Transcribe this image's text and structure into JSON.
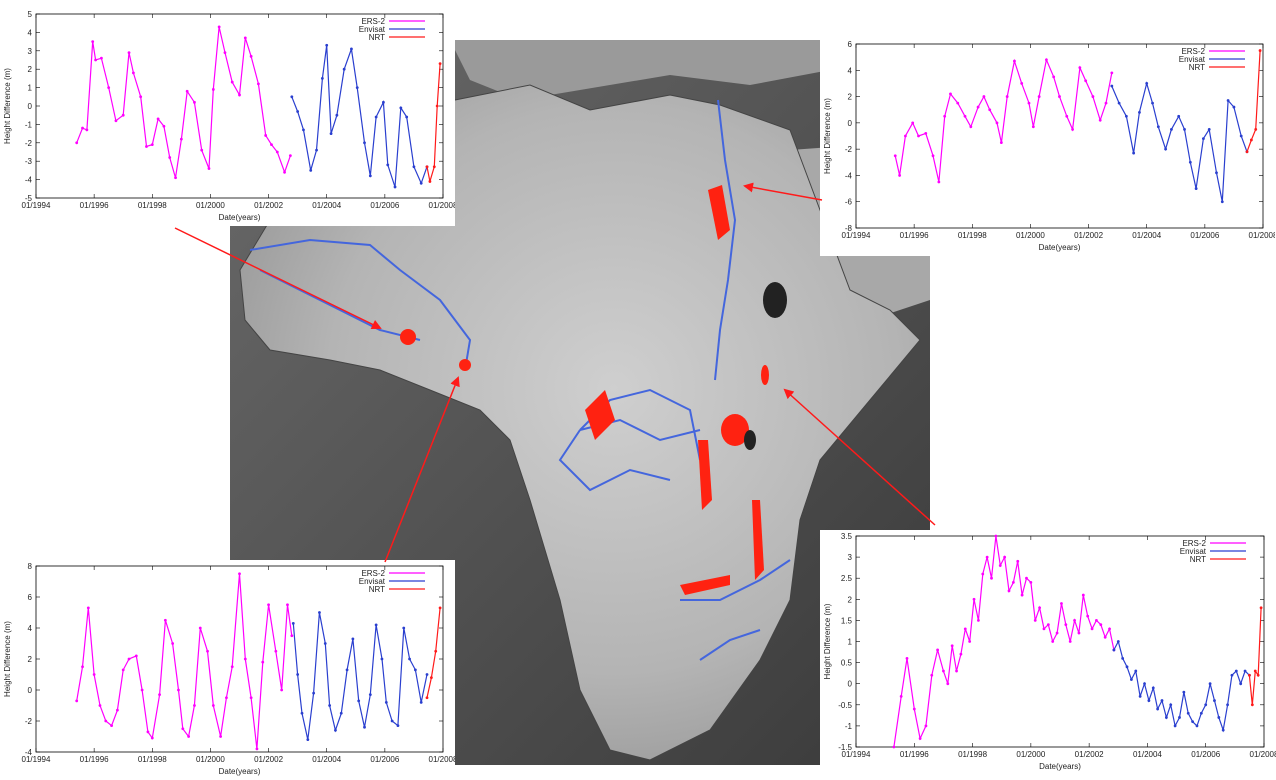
{
  "colors": {
    "ers2": "#ff00ff",
    "envisat": "#2a3fcf",
    "nrt": "#ff1a1a",
    "arrow": "#ff1a1a",
    "river": "#4466dd",
    "lake": "#ff2211"
  },
  "chart_data": [
    {
      "type": "line",
      "xlabel": "Date(years)",
      "ylabel": "Height Difference (m)",
      "xticks": [
        "01/1994",
        "01/1996",
        "01/1998",
        "01/2000",
        "01/2002",
        "01/2004",
        "01/2006",
        "01/2008"
      ],
      "xlim": [
        1994,
        2008
      ],
      "ylim": [
        -5,
        5
      ],
      "yticks": [
        "-5",
        "-4",
        "-3",
        "-2",
        "-1",
        "0",
        "1",
        "2",
        "3",
        "4",
        "5"
      ],
      "legend": [
        "ERS-2",
        "Envisat",
        "NRT"
      ],
      "series": [
        {
          "name": "ERS-2",
          "x": [
            1995.4,
            1995.6,
            1995.75,
            1995.95,
            1996.05,
            1996.25,
            1996.5,
            1996.75,
            1997.0,
            1997.2,
            1997.35,
            1997.6,
            1997.8,
            1998.0,
            1998.2,
            1998.4,
            1998.6,
            1998.8,
            1999.0,
            1999.2,
            1999.45,
            1999.7,
            1999.95,
            2000.1,
            2000.3,
            2000.5,
            2000.75,
            2001.0,
            2001.2,
            2001.4,
            2001.65,
            2001.9,
            2002.1,
            2002.3,
            2002.55,
            2002.75
          ],
          "y": [
            -2,
            -1.2,
            -1.3,
            3.5,
            2.5,
            2.6,
            1,
            -0.8,
            -0.5,
            2.9,
            1.8,
            0.5,
            -2.2,
            -2.1,
            -0.7,
            -1.1,
            -2.8,
            -3.9,
            -1.8,
            0.8,
            0.2,
            -2.4,
            -3.4,
            0.9,
            4.3,
            2.9,
            1.3,
            0.6,
            3.7,
            2.7,
            1.2,
            -1.6,
            -2.1,
            -2.5,
            -3.6,
            -2.7
          ]
        },
        {
          "name": "Envisat",
          "x": [
            2002.8,
            2003.0,
            2003.2,
            2003.45,
            2003.65,
            2003.85,
            2004.0,
            2004.15,
            2004.35,
            2004.6,
            2004.85,
            2005.05,
            2005.3,
            2005.5,
            2005.7,
            2005.95,
            2006.1,
            2006.35,
            2006.55,
            2006.75,
            2007.0,
            2007.25,
            2007.45
          ],
          "y": [
            0.5,
            -0.3,
            -1.3,
            -3.5,
            -2.4,
            1.5,
            3.3,
            -1.5,
            -0.5,
            2,
            3.1,
            1,
            -2,
            -3.8,
            -0.6,
            0.2,
            -3.2,
            -4.4,
            -0.1,
            -0.6,
            -3.3,
            -4.2,
            -3.3
          ]
        },
        {
          "name": "NRT",
          "x": [
            2007.45,
            2007.55,
            2007.7,
            2007.8,
            2007.9
          ],
          "y": [
            -3.3,
            -4.1,
            -3.3,
            0,
            2.3
          ]
        }
      ]
    },
    {
      "type": "line",
      "xlabel": "Date(years)",
      "ylabel": "Height Difference (m)",
      "xticks": [
        "01/1994",
        "01/1996",
        "01/1998",
        "01/2000",
        "01/2002",
        "01/2004",
        "01/2006",
        "01/2008"
      ],
      "xlim": [
        1994,
        2008
      ],
      "ylim": [
        -8,
        6
      ],
      "yticks": [
        "-8",
        "-6",
        "-4",
        "-2",
        "0",
        "2",
        "4",
        "6"
      ],
      "legend": [
        "ERS-2",
        "Envisat",
        "NRT"
      ],
      "series": [
        {
          "name": "ERS-2",
          "x": [
            1995.35,
            1995.5,
            1995.7,
            1995.95,
            1996.15,
            1996.4,
            1996.65,
            1996.85,
            1997.05,
            1997.25,
            1997.5,
            1997.75,
            1997.95,
            1998.2,
            1998.4,
            1998.6,
            1998.85,
            1999.0,
            1999.2,
            1999.45,
            1999.7,
            1999.95,
            2000.1,
            2000.3,
            2000.55,
            2000.8,
            2001.0,
            2001.25,
            2001.45,
            2001.7,
            2001.9,
            2002.15,
            2002.4,
            2002.6,
            2002.8
          ],
          "y": [
            -2.5,
            -4,
            -1,
            0,
            -1,
            -0.8,
            -2.5,
            -4.5,
            0.5,
            2.2,
            1.5,
            0.5,
            -0.3,
            1.2,
            2,
            1,
            0,
            -1.5,
            2,
            4.7,
            3,
            1.5,
            -0.3,
            2,
            4.8,
            3.5,
            2,
            0.5,
            -0.5,
            4.2,
            3.2,
            2,
            0.2,
            1.5,
            3.8
          ]
        },
        {
          "name": "Envisat",
          "x": [
            2002.8,
            2003.05,
            2003.3,
            2003.55,
            2003.75,
            2004.0,
            2004.2,
            2004.4,
            2004.65,
            2004.85,
            2005.1,
            2005.3,
            2005.5,
            2005.7,
            2005.95,
            2006.15,
            2006.4,
            2006.6,
            2006.8,
            2007.0,
            2007.25,
            2007.45
          ],
          "y": [
            2.8,
            1.5,
            0.5,
            -2.3,
            0.8,
            3,
            1.5,
            -0.3,
            -2,
            -0.5,
            0.5,
            -0.5,
            -3,
            -5,
            -1.2,
            -0.5,
            -3.8,
            -6,
            1.7,
            1.2,
            -1,
            -2.2
          ]
        },
        {
          "name": "NRT",
          "x": [
            2007.45,
            2007.6,
            2007.75,
            2007.9
          ],
          "y": [
            -2.2,
            -1.3,
            -0.5,
            5.5
          ]
        }
      ]
    },
    {
      "type": "line",
      "xlabel": "Date(years)",
      "ylabel": "Height Difference (m)",
      "xticks": [
        "01/1994",
        "01/1996",
        "01/1998",
        "01/2000",
        "01/2002",
        "01/2004",
        "01/2006",
        "01/2008"
      ],
      "xlim": [
        1994,
        2008
      ],
      "ylim": [
        -4,
        8
      ],
      "yticks": [
        "-4",
        "-2",
        "0",
        "2",
        "4",
        "6",
        "8"
      ],
      "legend": [
        "ERS-2",
        "Envisat",
        "NRT"
      ],
      "series": [
        {
          "name": "ERS-2",
          "x": [
            1995.4,
            1995.6,
            1995.8,
            1996.0,
            1996.2,
            1996.4,
            1996.6,
            1996.8,
            1997.0,
            1997.2,
            1997.45,
            1997.65,
            1997.85,
            1998.0,
            1998.25,
            1998.45,
            1998.7,
            1998.9,
            1999.05,
            1999.25,
            1999.45,
            1999.65,
            1999.9,
            2000.1,
            2000.35,
            2000.55,
            2000.75,
            2001.0,
            2001.2,
            2001.4,
            2001.6,
            2001.8,
            2002.0,
            2002.25,
            2002.45,
            2002.65,
            2002.8
          ],
          "y": [
            -0.7,
            1.5,
            5.3,
            1,
            -1,
            -2,
            -2.3,
            -1.3,
            1.3,
            2,
            2.2,
            0,
            -2.7,
            -3.1,
            -0.3,
            4.5,
            3,
            0,
            -2.5,
            -3,
            -1,
            4,
            2.5,
            -1,
            -3,
            -0.5,
            1.5,
            7.5,
            2,
            -0.5,
            -3.8,
            1.8,
            5.5,
            2.5,
            0,
            5.5,
            3.5
          ]
        },
        {
          "name": "Envisat",
          "x": [
            2002.85,
            2003.0,
            2003.15,
            2003.35,
            2003.55,
            2003.75,
            2003.95,
            2004.1,
            2004.3,
            2004.5,
            2004.7,
            2004.9,
            2005.1,
            2005.3,
            2005.5,
            2005.7,
            2005.9,
            2006.05,
            2006.25,
            2006.45,
            2006.65,
            2006.85,
            2007.05,
            2007.25,
            2007.45
          ],
          "y": [
            4.3,
            1,
            -1.5,
            -3.2,
            -0.2,
            5,
            3,
            -1,
            -2.6,
            -1.5,
            1.3,
            3.3,
            -0.7,
            -2.4,
            -0.3,
            4.2,
            2,
            -0.8,
            -2,
            -2.3,
            4,
            2,
            1.3,
            -0.8,
            1
          ]
        },
        {
          "name": "NRT",
          "x": [
            2007.45,
            2007.6,
            2007.75,
            2007.9
          ],
          "y": [
            -0.5,
            0.8,
            2.5,
            5.3
          ]
        }
      ]
    },
    {
      "type": "line",
      "xlabel": "Date(years)",
      "ylabel": "Height Difference (m)",
      "xticks": [
        "01/1994",
        "01/1996",
        "01/1998",
        "01/2000",
        "01/2002",
        "01/2004",
        "01/2006",
        "01/2008"
      ],
      "xlim": [
        1994,
        2008
      ],
      "ylim": [
        -1.5,
        3.5
      ],
      "yticks": [
        "-1.5",
        "-1",
        "-0.5",
        "0",
        "0.5",
        "1",
        "1.5",
        "2",
        "2.5",
        "3",
        "3.5"
      ],
      "legend": [
        "ERS-2",
        "Envisat",
        "NRT"
      ],
      "series": [
        {
          "name": "ERS-2",
          "x": [
            1995.3,
            1995.55,
            1995.75,
            1996.0,
            1996.2,
            1996.4,
            1996.6,
            1996.8,
            1997.0,
            1997.15,
            1997.3,
            1997.45,
            1997.6,
            1997.75,
            1997.9,
            1998.05,
            1998.2,
            1998.35,
            1998.5,
            1998.65,
            1998.8,
            1998.95,
            1999.1,
            1999.25,
            1999.4,
            1999.55,
            1999.7,
            1999.85,
            2000.0,
            2000.15,
            2000.3,
            2000.45,
            2000.6,
            2000.75,
            2000.9,
            2001.05,
            2001.2,
            2001.35,
            2001.5,
            2001.65,
            2001.8,
            2001.95,
            2002.1,
            2002.25,
            2002.4,
            2002.55,
            2002.7,
            2002.85
          ],
          "y": [
            -1.5,
            -0.3,
            0.6,
            -0.6,
            -1.3,
            -1,
            0.2,
            0.8,
            0.3,
            0,
            0.9,
            0.3,
            0.7,
            1.3,
            1,
            2,
            1.5,
            2.6,
            3,
            2.5,
            3.5,
            2.8,
            3,
            2.2,
            2.4,
            2.9,
            2.1,
            2.5,
            2.4,
            1.5,
            1.8,
            1.3,
            1.4,
            1,
            1.2,
            1.9,
            1.4,
            1,
            1.5,
            1.2,
            2.1,
            1.6,
            1.3,
            1.5,
            1.4,
            1.1,
            1.3,
            0.8
          ]
        },
        {
          "name": "Envisat",
          "x": [
            2002.85,
            2003.0,
            2003.15,
            2003.3,
            2003.45,
            2003.6,
            2003.75,
            2003.9,
            2004.05,
            2004.2,
            2004.35,
            2004.5,
            2004.65,
            2004.8,
            2004.95,
            2005.1,
            2005.25,
            2005.4,
            2005.55,
            2005.7,
            2005.85,
            2006.0,
            2006.15,
            2006.3,
            2006.45,
            2006.6,
            2006.75,
            2006.9,
            2007.05,
            2007.2,
            2007.35,
            2007.5
          ],
          "y": [
            0.8,
            1,
            0.6,
            0.4,
            0.1,
            0.3,
            -0.3,
            0,
            -0.4,
            -0.1,
            -0.6,
            -0.4,
            -0.8,
            -0.5,
            -1,
            -0.8,
            -0.2,
            -0.7,
            -0.9,
            -1,
            -0.7,
            -0.5,
            0,
            -0.4,
            -0.8,
            -1.1,
            -0.5,
            0.2,
            0.3,
            0,
            0.3,
            0.2
          ]
        },
        {
          "name": "NRT",
          "x": [
            2007.5,
            2007.6,
            2007.7,
            2007.8,
            2007.9
          ],
          "y": [
            0.2,
            -0.5,
            0.3,
            0.2,
            1.8
          ]
        }
      ]
    }
  ]
}
